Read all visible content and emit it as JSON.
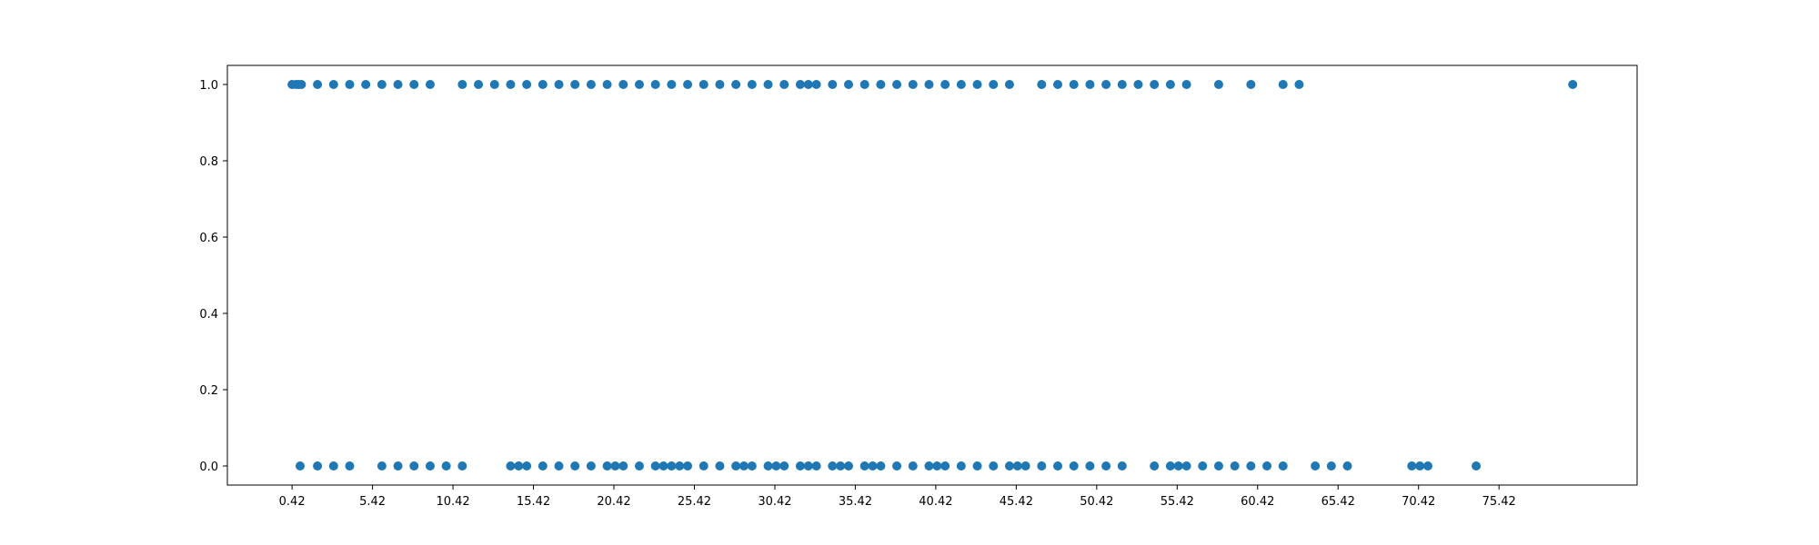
{
  "chart_data": {
    "type": "scatter",
    "title": "",
    "xlabel": "",
    "ylabel": "",
    "xlim": [
      -3.6,
      84.0
    ],
    "ylim": [
      -0.05,
      1.05
    ],
    "grid": false,
    "legend": "none",
    "color": "#1f77b4",
    "x_ticks": [
      "0.42",
      "5.42",
      "10.42",
      "15.42",
      "20.42",
      "25.42",
      "30.42",
      "35.42",
      "40.42",
      "45.42",
      "50.42",
      "55.42",
      "60.42",
      "65.42",
      "70.42",
      "75.42"
    ],
    "y_ticks": [
      "0.0",
      "0.2",
      "0.4",
      "0.6",
      "0.8",
      "1.0"
    ],
    "series": [
      {
        "values": [
          {
            "x": 0.42,
            "y": 1
          },
          {
            "x": 0.67,
            "y": 1
          },
          {
            "x": 0.83,
            "y": 1
          },
          {
            "x": 1.0,
            "y": 1
          },
          {
            "x": 2.0,
            "y": 1
          },
          {
            "x": 3.0,
            "y": 1
          },
          {
            "x": 4.0,
            "y": 1
          },
          {
            "x": 5.0,
            "y": 1
          },
          {
            "x": 6.0,
            "y": 1
          },
          {
            "x": 7.0,
            "y": 1
          },
          {
            "x": 8.0,
            "y": 1
          },
          {
            "x": 9.0,
            "y": 1
          },
          {
            "x": 11.0,
            "y": 1
          },
          {
            "x": 12.0,
            "y": 1
          },
          {
            "x": 13.0,
            "y": 1
          },
          {
            "x": 14.0,
            "y": 1
          },
          {
            "x": 15.0,
            "y": 1
          },
          {
            "x": 16.0,
            "y": 1
          },
          {
            "x": 17.0,
            "y": 1
          },
          {
            "x": 18.0,
            "y": 1
          },
          {
            "x": 19.0,
            "y": 1
          },
          {
            "x": 20.0,
            "y": 1
          },
          {
            "x": 21.0,
            "y": 1
          },
          {
            "x": 22.0,
            "y": 1
          },
          {
            "x": 23.0,
            "y": 1
          },
          {
            "x": 24.0,
            "y": 1
          },
          {
            "x": 25.0,
            "y": 1
          },
          {
            "x": 26.0,
            "y": 1
          },
          {
            "x": 27.0,
            "y": 1
          },
          {
            "x": 28.0,
            "y": 1
          },
          {
            "x": 29.0,
            "y": 1
          },
          {
            "x": 30.0,
            "y": 1
          },
          {
            "x": 31.0,
            "y": 1
          },
          {
            "x": 32.0,
            "y": 1
          },
          {
            "x": 32.5,
            "y": 1
          },
          {
            "x": 33.0,
            "y": 1
          },
          {
            "x": 34.0,
            "y": 1
          },
          {
            "x": 35.0,
            "y": 1
          },
          {
            "x": 36.0,
            "y": 1
          },
          {
            "x": 37.0,
            "y": 1
          },
          {
            "x": 38.0,
            "y": 1
          },
          {
            "x": 39.0,
            "y": 1
          },
          {
            "x": 40.0,
            "y": 1
          },
          {
            "x": 41.0,
            "y": 1
          },
          {
            "x": 42.0,
            "y": 1
          },
          {
            "x": 43.0,
            "y": 1
          },
          {
            "x": 44.0,
            "y": 1
          },
          {
            "x": 45.0,
            "y": 1
          },
          {
            "x": 47.0,
            "y": 1
          },
          {
            "x": 48.0,
            "y": 1
          },
          {
            "x": 49.0,
            "y": 1
          },
          {
            "x": 50.0,
            "y": 1
          },
          {
            "x": 51.0,
            "y": 1
          },
          {
            "x": 52.0,
            "y": 1
          },
          {
            "x": 53.0,
            "y": 1
          },
          {
            "x": 54.0,
            "y": 1
          },
          {
            "x": 55.0,
            "y": 1
          },
          {
            "x": 56.0,
            "y": 1
          },
          {
            "x": 58.0,
            "y": 1
          },
          {
            "x": 60.0,
            "y": 1
          },
          {
            "x": 62.0,
            "y": 1
          },
          {
            "x": 63.0,
            "y": 1
          },
          {
            "x": 80.0,
            "y": 1
          },
          {
            "x": 0.92,
            "y": 0
          },
          {
            "x": 2.0,
            "y": 0
          },
          {
            "x": 3.0,
            "y": 0
          },
          {
            "x": 4.0,
            "y": 0
          },
          {
            "x": 6.0,
            "y": 0
          },
          {
            "x": 7.0,
            "y": 0
          },
          {
            "x": 8.0,
            "y": 0
          },
          {
            "x": 9.0,
            "y": 0
          },
          {
            "x": 10.0,
            "y": 0
          },
          {
            "x": 11.0,
            "y": 0
          },
          {
            "x": 14.0,
            "y": 0
          },
          {
            "x": 14.5,
            "y": 0
          },
          {
            "x": 15.0,
            "y": 0
          },
          {
            "x": 16.0,
            "y": 0
          },
          {
            "x": 17.0,
            "y": 0
          },
          {
            "x": 18.0,
            "y": 0
          },
          {
            "x": 19.0,
            "y": 0
          },
          {
            "x": 20.0,
            "y": 0
          },
          {
            "x": 20.5,
            "y": 0
          },
          {
            "x": 21.0,
            "y": 0
          },
          {
            "x": 22.0,
            "y": 0
          },
          {
            "x": 23.0,
            "y": 0
          },
          {
            "x": 23.5,
            "y": 0
          },
          {
            "x": 24.0,
            "y": 0
          },
          {
            "x": 24.5,
            "y": 0
          },
          {
            "x": 25.0,
            "y": 0
          },
          {
            "x": 26.0,
            "y": 0
          },
          {
            "x": 27.0,
            "y": 0
          },
          {
            "x": 28.0,
            "y": 0
          },
          {
            "x": 28.5,
            "y": 0
          },
          {
            "x": 29.0,
            "y": 0
          },
          {
            "x": 30.0,
            "y": 0
          },
          {
            "x": 30.5,
            "y": 0
          },
          {
            "x": 31.0,
            "y": 0
          },
          {
            "x": 32.0,
            "y": 0
          },
          {
            "x": 32.5,
            "y": 0
          },
          {
            "x": 33.0,
            "y": 0
          },
          {
            "x": 34.0,
            "y": 0
          },
          {
            "x": 34.5,
            "y": 0
          },
          {
            "x": 35.0,
            "y": 0
          },
          {
            "x": 36.0,
            "y": 0
          },
          {
            "x": 36.5,
            "y": 0
          },
          {
            "x": 37.0,
            "y": 0
          },
          {
            "x": 38.0,
            "y": 0
          },
          {
            "x": 39.0,
            "y": 0
          },
          {
            "x": 40.0,
            "y": 0
          },
          {
            "x": 40.5,
            "y": 0
          },
          {
            "x": 41.0,
            "y": 0
          },
          {
            "x": 42.0,
            "y": 0
          },
          {
            "x": 43.0,
            "y": 0
          },
          {
            "x": 44.0,
            "y": 0
          },
          {
            "x": 45.0,
            "y": 0
          },
          {
            "x": 45.5,
            "y": 0
          },
          {
            "x": 46.0,
            "y": 0
          },
          {
            "x": 47.0,
            "y": 0
          },
          {
            "x": 48.0,
            "y": 0
          },
          {
            "x": 49.0,
            "y": 0
          },
          {
            "x": 50.0,
            "y": 0
          },
          {
            "x": 51.0,
            "y": 0
          },
          {
            "x": 52.0,
            "y": 0
          },
          {
            "x": 54.0,
            "y": 0
          },
          {
            "x": 55.0,
            "y": 0
          },
          {
            "x": 55.5,
            "y": 0
          },
          {
            "x": 56.0,
            "y": 0
          },
          {
            "x": 57.0,
            "y": 0
          },
          {
            "x": 58.0,
            "y": 0
          },
          {
            "x": 59.0,
            "y": 0
          },
          {
            "x": 60.0,
            "y": 0
          },
          {
            "x": 61.0,
            "y": 0
          },
          {
            "x": 62.0,
            "y": 0
          },
          {
            "x": 64.0,
            "y": 0
          },
          {
            "x": 65.0,
            "y": 0
          },
          {
            "x": 66.0,
            "y": 0
          },
          {
            "x": 70.0,
            "y": 0
          },
          {
            "x": 70.5,
            "y": 0
          },
          {
            "x": 71.0,
            "y": 0
          },
          {
            "x": 74.0,
            "y": 0
          }
        ]
      }
    ]
  }
}
